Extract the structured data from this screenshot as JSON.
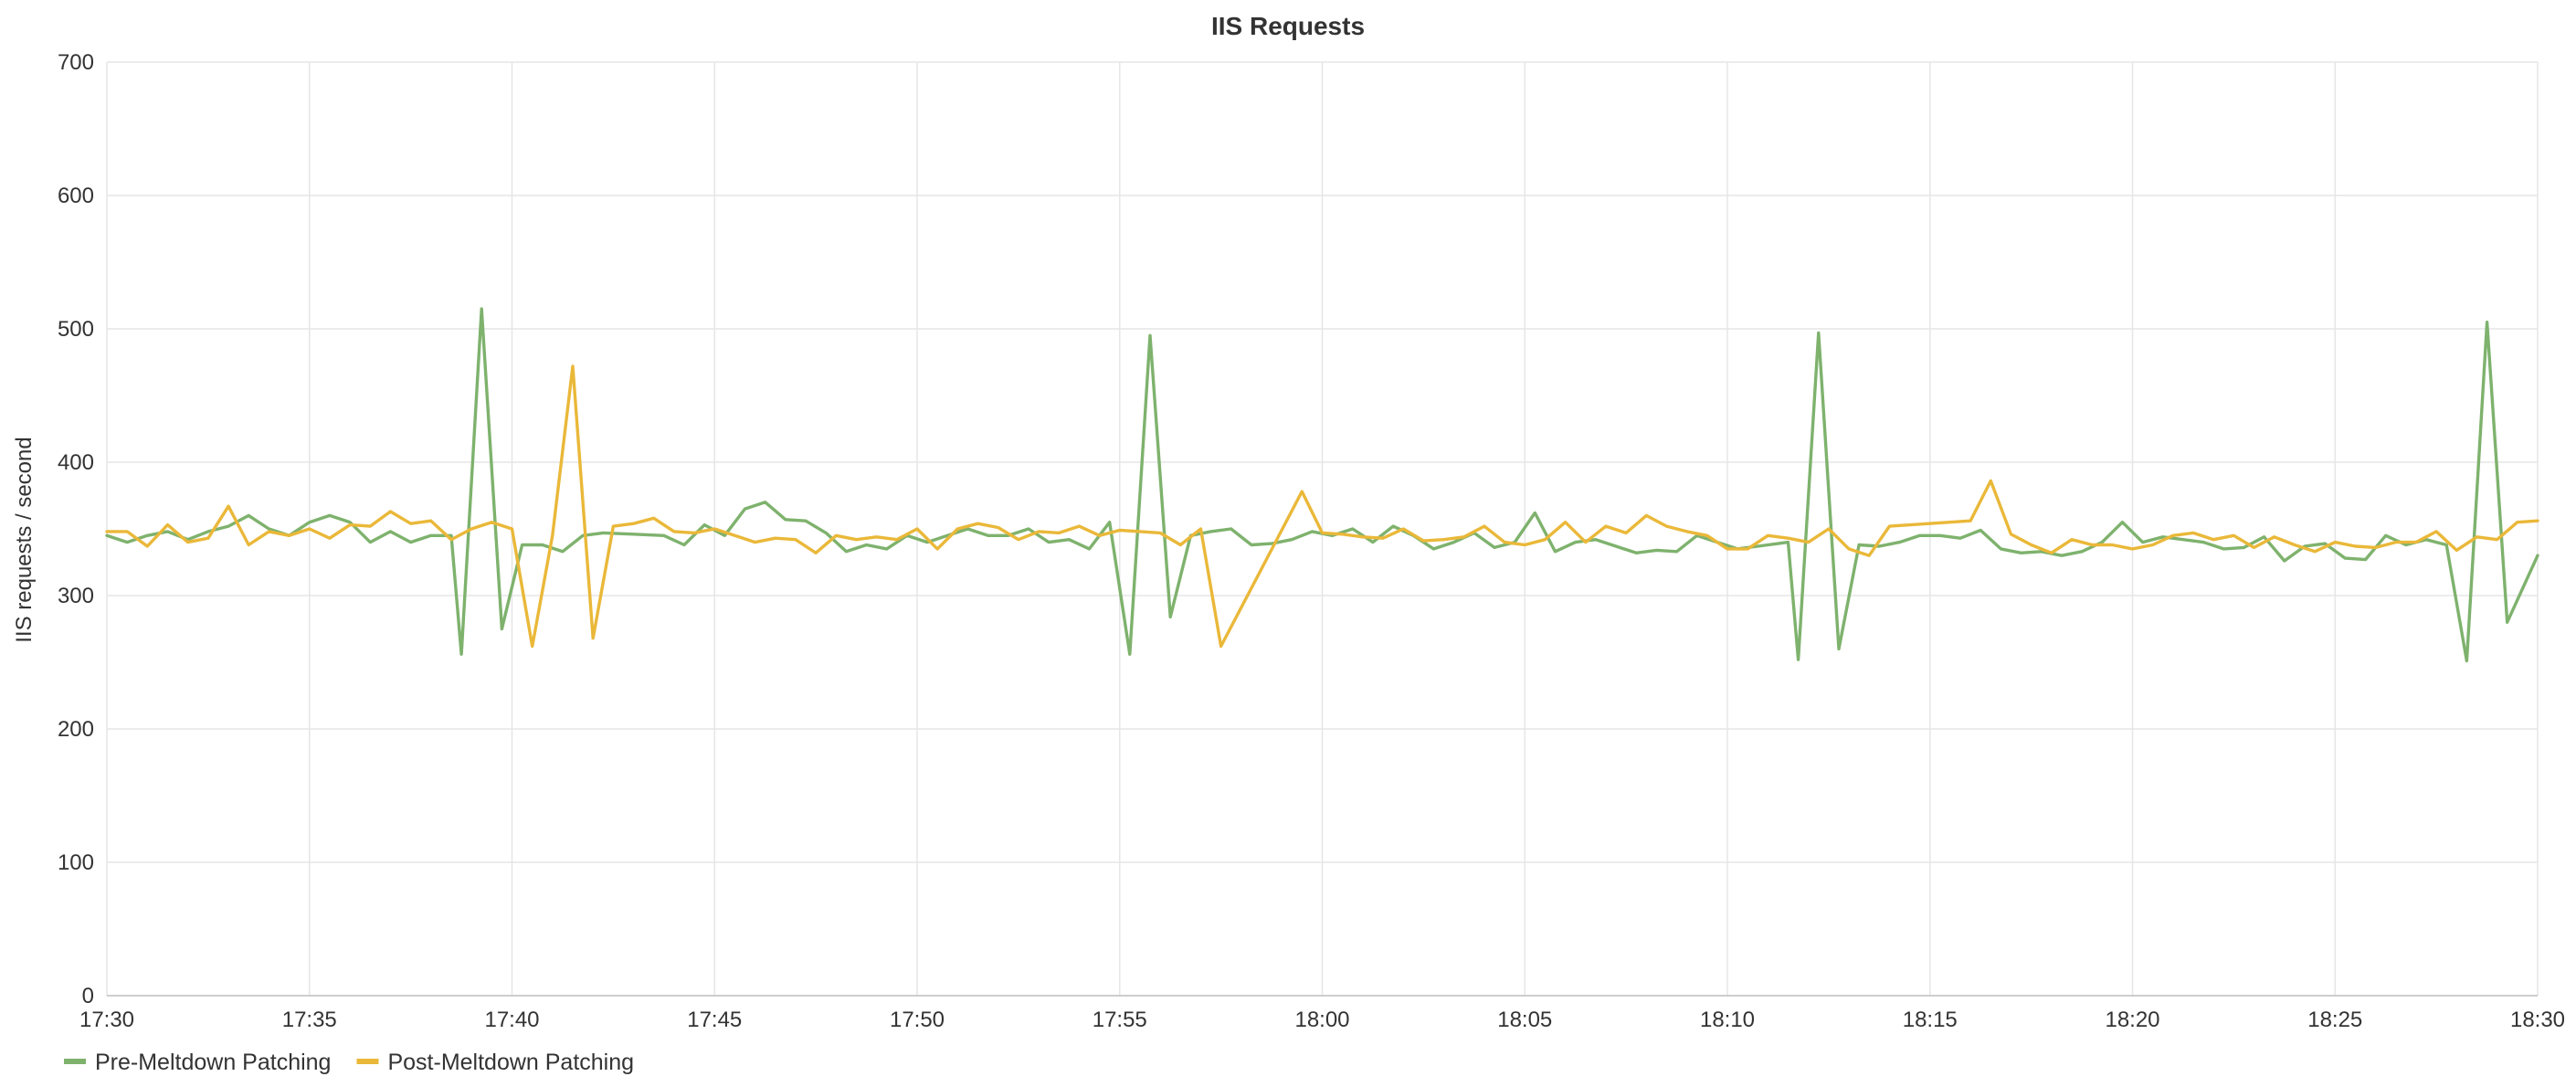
{
  "chart_data": {
    "type": "line",
    "title": "IIS Requests",
    "xlabel": "",
    "ylabel": "IIS requests / second",
    "ylim": [
      0,
      700
    ],
    "yticks": [
      0,
      100,
      200,
      300,
      400,
      500,
      600,
      700
    ],
    "xlim": [
      "17:30",
      "18:30"
    ],
    "xticks": [
      "17:30",
      "17:35",
      "17:40",
      "17:45",
      "17:50",
      "17:55",
      "18:00",
      "18:05",
      "18:10",
      "18:15",
      "18:20",
      "18:25",
      "18:30"
    ],
    "grid": true,
    "legend": "bottom-left",
    "series": [
      {
        "name": "Pre-Meltdown Patching",
        "color": "#7eb26d",
        "points": [
          [
            "17:30:00",
            345
          ],
          [
            "17:30:30",
            340
          ],
          [
            "17:31:00",
            345
          ],
          [
            "17:31:30",
            348
          ],
          [
            "17:32:00",
            342
          ],
          [
            "17:32:30",
            348
          ],
          [
            "17:33:00",
            352
          ],
          [
            "17:33:30",
            360
          ],
          [
            "17:34:00",
            350
          ],
          [
            "17:34:30",
            345
          ],
          [
            "17:35:00",
            355
          ],
          [
            "17:35:30",
            360
          ],
          [
            "17:36:00",
            355
          ],
          [
            "17:36:30",
            340
          ],
          [
            "17:37:00",
            348
          ],
          [
            "17:37:30",
            340
          ],
          [
            "17:38:00",
            345
          ],
          [
            "17:38:30",
            345
          ],
          [
            "17:38:45",
            256
          ],
          [
            "17:39:15",
            515
          ],
          [
            "17:39:45",
            275
          ],
          [
            "17:40:15",
            338
          ],
          [
            "17:40:45",
            338
          ],
          [
            "17:41:15",
            333
          ],
          [
            "17:41:45",
            345
          ],
          [
            "17:42:15",
            347
          ],
          [
            "17:43:00",
            346
          ],
          [
            "17:43:45",
            345
          ],
          [
            "17:44:15",
            338
          ],
          [
            "17:44:45",
            353
          ],
          [
            "17:45:15",
            345
          ],
          [
            "17:45:45",
            365
          ],
          [
            "17:46:15",
            370
          ],
          [
            "17:46:45",
            357
          ],
          [
            "17:47:15",
            356
          ],
          [
            "17:47:45",
            347
          ],
          [
            "17:48:15",
            333
          ],
          [
            "17:48:45",
            338
          ],
          [
            "17:49:15",
            335
          ],
          [
            "17:49:45",
            345
          ],
          [
            "17:50:15",
            340
          ],
          [
            "17:50:45",
            345
          ],
          [
            "17:51:15",
            350
          ],
          [
            "17:51:45",
            345
          ],
          [
            "17:52:15",
            345
          ],
          [
            "17:52:45",
            350
          ],
          [
            "17:53:15",
            340
          ],
          [
            "17:53:45",
            342
          ],
          [
            "17:54:15",
            335
          ],
          [
            "17:54:45",
            355
          ],
          [
            "17:55:15",
            256
          ],
          [
            "17:55:45",
            495
          ],
          [
            "17:56:15",
            284
          ],
          [
            "17:56:45",
            345
          ],
          [
            "17:57:15",
            348
          ],
          [
            "17:57:45",
            350
          ],
          [
            "17:58:15",
            338
          ],
          [
            "17:58:45",
            339
          ],
          [
            "17:59:15",
            342
          ],
          [
            "17:59:45",
            348
          ],
          [
            "18:00:15",
            345
          ],
          [
            "18:00:45",
            350
          ],
          [
            "18:01:15",
            340
          ],
          [
            "18:01:45",
            352
          ],
          [
            "18:02:15",
            345
          ],
          [
            "18:02:45",
            335
          ],
          [
            "18:03:15",
            340
          ],
          [
            "18:03:45",
            347
          ],
          [
            "18:04:15",
            336
          ],
          [
            "18:04:45",
            340
          ],
          [
            "18:05:15",
            362
          ],
          [
            "18:05:45",
            333
          ],
          [
            "18:06:15",
            340
          ],
          [
            "18:06:45",
            342
          ],
          [
            "18:07:15",
            337
          ],
          [
            "18:07:45",
            332
          ],
          [
            "18:08:15",
            334
          ],
          [
            "18:08:45",
            333
          ],
          [
            "18:09:15",
            345
          ],
          [
            "18:09:45",
            340
          ],
          [
            "18:10:15",
            335
          ],
          [
            "18:10:45",
            337
          ],
          [
            "18:11:15",
            339
          ],
          [
            "18:11:30",
            340
          ],
          [
            "18:11:45",
            252
          ],
          [
            "18:12:15",
            497
          ],
          [
            "18:12:45",
            260
          ],
          [
            "18:13:15",
            338
          ],
          [
            "18:13:45",
            337
          ],
          [
            "18:14:15",
            340
          ],
          [
            "18:14:45",
            345
          ],
          [
            "18:15:15",
            345
          ],
          [
            "18:15:45",
            343
          ],
          [
            "18:16:15",
            349
          ],
          [
            "18:16:45",
            335
          ],
          [
            "18:17:15",
            332
          ],
          [
            "18:17:45",
            333
          ],
          [
            "18:18:15",
            330
          ],
          [
            "18:18:45",
            333
          ],
          [
            "18:19:15",
            340
          ],
          [
            "18:19:45",
            355
          ],
          [
            "18:20:15",
            340
          ],
          [
            "18:20:45",
            344
          ],
          [
            "18:21:15",
            342
          ],
          [
            "18:21:45",
            340
          ],
          [
            "18:22:15",
            335
          ],
          [
            "18:22:45",
            336
          ],
          [
            "18:23:15",
            344
          ],
          [
            "18:23:45",
            326
          ],
          [
            "18:24:15",
            337
          ],
          [
            "18:24:45",
            339
          ],
          [
            "18:25:15",
            328
          ],
          [
            "18:25:45",
            327
          ],
          [
            "18:26:15",
            345
          ],
          [
            "18:26:45",
            338
          ],
          [
            "18:27:15",
            342
          ],
          [
            "18:27:45",
            338
          ],
          [
            "18:28:15",
            251
          ],
          [
            "18:28:45",
            505
          ],
          [
            "18:29:15",
            280
          ],
          [
            "18:30:00",
            330
          ]
        ]
      },
      {
        "name": "Post-Meltdown Patching",
        "color": "#eab839",
        "points": [
          [
            "17:30:00",
            348
          ],
          [
            "17:30:30",
            348
          ],
          [
            "17:31:00",
            337
          ],
          [
            "17:31:30",
            353
          ],
          [
            "17:32:00",
            340
          ],
          [
            "17:32:30",
            343
          ],
          [
            "17:33:00",
            367
          ],
          [
            "17:33:30",
            338
          ],
          [
            "17:34:00",
            348
          ],
          [
            "17:34:30",
            345
          ],
          [
            "17:35:00",
            350
          ],
          [
            "17:35:30",
            343
          ],
          [
            "17:36:00",
            353
          ],
          [
            "17:36:30",
            352
          ],
          [
            "17:37:00",
            363
          ],
          [
            "17:37:30",
            354
          ],
          [
            "17:38:00",
            356
          ],
          [
            "17:38:30",
            342
          ],
          [
            "17:39:00",
            350
          ],
          [
            "17:39:30",
            355
          ],
          [
            "17:40:00",
            350
          ],
          [
            "17:40:30",
            262
          ],
          [
            "17:41:00",
            345
          ],
          [
            "17:41:30",
            472
          ],
          [
            "17:42:00",
            268
          ],
          [
            "17:42:30",
            352
          ],
          [
            "17:43:00",
            354
          ],
          [
            "17:43:30",
            358
          ],
          [
            "17:44:00",
            348
          ],
          [
            "17:44:30",
            347
          ],
          [
            "17:45:00",
            350
          ],
          [
            "17:45:30",
            345
          ],
          [
            "17:46:00",
            340
          ],
          [
            "17:46:30",
            343
          ],
          [
            "17:47:00",
            342
          ],
          [
            "17:47:30",
            332
          ],
          [
            "17:48:00",
            345
          ],
          [
            "17:48:30",
            342
          ],
          [
            "17:49:00",
            344
          ],
          [
            "17:49:30",
            342
          ],
          [
            "17:50:00",
            350
          ],
          [
            "17:50:30",
            335
          ],
          [
            "17:51:00",
            350
          ],
          [
            "17:51:30",
            354
          ],
          [
            "17:52:00",
            351
          ],
          [
            "17:52:30",
            342
          ],
          [
            "17:53:00",
            348
          ],
          [
            "17:53:30",
            347
          ],
          [
            "17:54:00",
            352
          ],
          [
            "17:54:30",
            345
          ],
          [
            "17:55:00",
            349
          ],
          [
            "17:55:30",
            348
          ],
          [
            "17:56:00",
            347
          ],
          [
            "17:56:30",
            338
          ],
          [
            "17:57:00",
            350
          ],
          [
            "17:57:30",
            262
          ],
          [
            "17:59:30",
            378
          ],
          [
            "18:00:00",
            347
          ],
          [
            "18:00:30",
            346
          ],
          [
            "18:01:00",
            344
          ],
          [
            "18:01:30",
            343
          ],
          [
            "18:02:00",
            350
          ],
          [
            "18:02:30",
            341
          ],
          [
            "18:03:00",
            342
          ],
          [
            "18:03:30",
            344
          ],
          [
            "18:04:00",
            352
          ],
          [
            "18:04:30",
            340
          ],
          [
            "18:05:00",
            338
          ],
          [
            "18:05:30",
            342
          ],
          [
            "18:06:00",
            355
          ],
          [
            "18:06:30",
            340
          ],
          [
            "18:07:00",
            352
          ],
          [
            "18:07:30",
            347
          ],
          [
            "18:08:00",
            360
          ],
          [
            "18:08:30",
            352
          ],
          [
            "18:09:00",
            348
          ],
          [
            "18:09:30",
            345
          ],
          [
            "18:10:00",
            335
          ],
          [
            "18:10:30",
            335
          ],
          [
            "18:11:00",
            345
          ],
          [
            "18:11:30",
            343
          ],
          [
            "18:12:00",
            340
          ],
          [
            "18:12:30",
            350
          ],
          [
            "18:13:00",
            335
          ],
          [
            "18:13:30",
            330
          ],
          [
            "18:14:00",
            352
          ],
          [
            "18:16:00",
            356
          ],
          [
            "18:16:30",
            386
          ],
          [
            "18:17:00",
            346
          ],
          [
            "18:17:30",
            338
          ],
          [
            "18:18:00",
            332
          ],
          [
            "18:18:30",
            342
          ],
          [
            "18:19:00",
            338
          ],
          [
            "18:19:30",
            338
          ],
          [
            "18:20:00",
            335
          ],
          [
            "18:20:30",
            338
          ],
          [
            "18:21:00",
            345
          ],
          [
            "18:21:30",
            347
          ],
          [
            "18:22:00",
            342
          ],
          [
            "18:22:30",
            345
          ],
          [
            "18:23:00",
            336
          ],
          [
            "18:23:30",
            344
          ],
          [
            "18:24:00",
            338
          ],
          [
            "18:24:30",
            333
          ],
          [
            "18:25:00",
            340
          ],
          [
            "18:25:30",
            337
          ],
          [
            "18:26:00",
            336
          ],
          [
            "18:26:30",
            340
          ],
          [
            "18:27:00",
            340
          ],
          [
            "18:27:30",
            348
          ],
          [
            "18:28:00",
            334
          ],
          [
            "18:28:30",
            344
          ],
          [
            "18:29:00",
            342
          ],
          [
            "18:29:30",
            355
          ],
          [
            "18:30:00",
            356
          ]
        ]
      }
    ]
  }
}
